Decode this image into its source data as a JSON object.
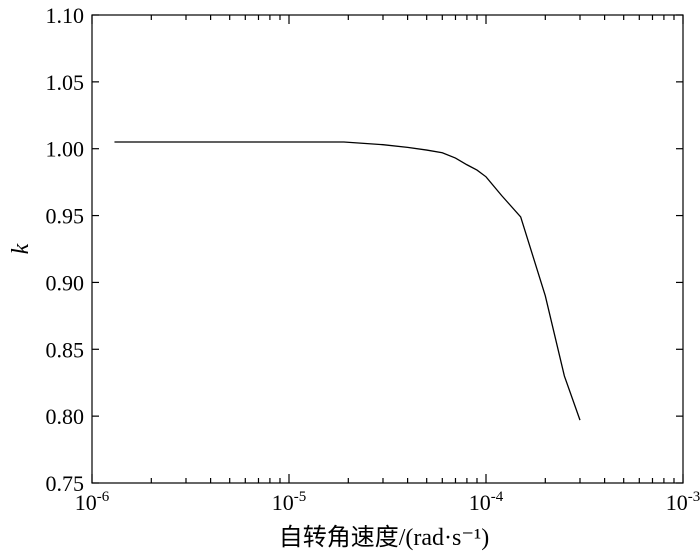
{
  "chart_data": {
    "type": "line",
    "title": "",
    "xlabel": "自转角速度/(rad·s⁻¹)",
    "ylabel": "k",
    "xscale": "log",
    "xlim": [
      1e-06,
      0.001
    ],
    "ylim": [
      0.75,
      1.1
    ],
    "grid": false,
    "x_ticks": [
      {
        "value": 1e-06,
        "base": "10",
        "exp": "-6"
      },
      {
        "value": 1e-05,
        "base": "10",
        "exp": "-5"
      },
      {
        "value": 0.0001,
        "base": "10",
        "exp": "-4"
      },
      {
        "value": 0.001,
        "base": "10",
        "exp": "-3"
      }
    ],
    "y_ticks": [
      0.75,
      0.8,
      0.85,
      0.9,
      0.95,
      1.0,
      1.05,
      1.1
    ],
    "y_tick_labels": [
      "0.75",
      "0.80",
      "0.85",
      "0.90",
      "0.95",
      "1.00",
      "1.05",
      "1.10"
    ],
    "series": [
      {
        "x": [
          1.3e-06,
          5e-06,
          1e-05,
          1.9e-05,
          3e-05,
          4e-05,
          5e-05,
          6e-05,
          7e-05,
          8e-05,
          9e-05,
          0.0001,
          0.00012,
          0.00015,
          0.0002,
          0.00025,
          0.0003
        ],
        "y": [
          1.005,
          1.005,
          1.005,
          1.005,
          1.003,
          1.001,
          0.999,
          0.997,
          0.993,
          0.988,
          0.984,
          0.979,
          0.965,
          0.949,
          0.89,
          0.83,
          0.797
        ]
      }
    ],
    "colors": {
      "line": "#000000",
      "axis": "#000000"
    }
  }
}
